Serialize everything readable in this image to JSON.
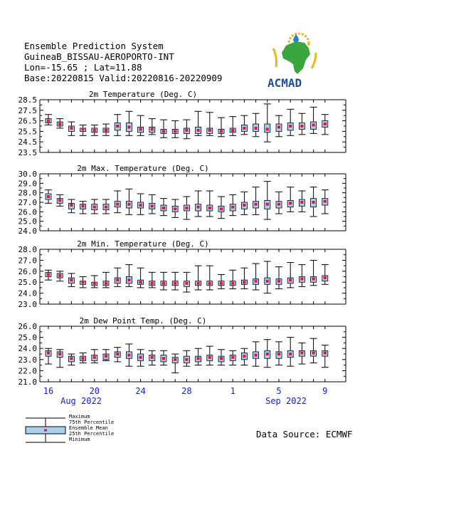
{
  "header": {
    "line1": "Ensemble Prediction System",
    "line2": "GuineaB_BISSAU-AEROPORTO-INT",
    "line3": "Lon=-15.65 ; Lat=11.88",
    "line4": "Base:20220815 Valid:20220816-20220909"
  },
  "logo": {
    "text": "ACMAD"
  },
  "source": "Data Source: ECMWF",
  "legend": {
    "maximum": "Maximum",
    "p75": "75th Percentile",
    "mean": "Ensemble Mean",
    "p25": "25th Percentile",
    "minimum": "Minimum"
  },
  "colors": {
    "box_fill": "#a9cfee",
    "mean_marker": "#e0104c",
    "axis_text": "#1a20c8"
  },
  "x_axis": {
    "tick_labels": [
      "16",
      "20",
      "24",
      "28",
      "1",
      "5",
      "9"
    ],
    "month_labels": [
      "Aug 2022",
      "Sep 2022"
    ]
  },
  "chart_data": [
    {
      "type": "box",
      "title": "2m Temperature (Deg. C)",
      "ylim": [
        23.5,
        28.5
      ],
      "yticks": [
        "28.5",
        "27.5",
        "26.5",
        "25.5",
        "24.5",
        "23.5"
      ],
      "mean": [
        26.5,
        26.2,
        25.8,
        25.7,
        25.6,
        25.6,
        26.0,
        25.9,
        25.7,
        25.7,
        25.5,
        25.5,
        25.6,
        25.6,
        25.6,
        25.5,
        25.6,
        25.8,
        25.8,
        25.7,
        25.9,
        26.0,
        26.0,
        26.1,
        26.2
      ],
      "p25": [
        26.3,
        26.0,
        25.5,
        25.5,
        25.4,
        25.4,
        25.6,
        25.5,
        25.4,
        25.4,
        25.3,
        25.3,
        25.3,
        25.3,
        25.3,
        25.3,
        25.4,
        25.5,
        25.5,
        25.4,
        25.5,
        25.6,
        25.7,
        25.7,
        25.9
      ],
      "p75": [
        26.7,
        26.4,
        26.0,
        25.8,
        25.8,
        25.8,
        26.3,
        26.3,
        25.9,
        25.9,
        25.7,
        25.7,
        25.8,
        25.9,
        25.8,
        25.7,
        25.8,
        26.1,
        26.2,
        26.2,
        26.2,
        26.3,
        26.3,
        26.4,
        26.5
      ],
      "min": [
        26.1,
        25.8,
        25.1,
        25.1,
        25.1,
        25.1,
        25.1,
        25.1,
        25.1,
        25.2,
        24.9,
        24.9,
        24.8,
        25.1,
        25.1,
        25.0,
        25.1,
        25.2,
        25.0,
        24.5,
        25.0,
        25.1,
        25.2,
        25.3,
        25.2
      ],
      "max": [
        27.1,
        26.7,
        26.4,
        26.1,
        26.1,
        26.2,
        27.1,
        27.4,
        27.0,
        26.7,
        26.6,
        26.5,
        26.6,
        27.4,
        27.3,
        26.8,
        26.9,
        27.0,
        27.2,
        28.1,
        27.0,
        27.6,
        27.2,
        27.8,
        27.1
      ]
    },
    {
      "type": "box",
      "title": "2m Max. Temperature (Deg. C)",
      "ylim": [
        24.0,
        30.0
      ],
      "yticks": [
        "30.0",
        "29.0",
        "28.0",
        "27.0",
        "26.0",
        "25.0",
        "24.0"
      ],
      "mean": [
        27.6,
        27.2,
        26.7,
        26.6,
        26.5,
        26.5,
        26.8,
        26.8,
        26.7,
        26.6,
        26.4,
        26.3,
        26.4,
        26.5,
        26.4,
        26.3,
        26.5,
        26.7,
        26.8,
        26.8,
        26.8,
        26.9,
        27.0,
        27.0,
        27.1
      ],
      "p25": [
        27.3,
        26.9,
        26.3,
        26.3,
        26.2,
        26.2,
        26.5,
        26.4,
        26.4,
        26.3,
        26.1,
        26.0,
        26.1,
        26.1,
        26.1,
        26.0,
        26.1,
        26.3,
        26.4,
        26.3,
        26.4,
        26.5,
        26.6,
        26.5,
        26.7
      ],
      "p75": [
        27.9,
        27.4,
        26.9,
        26.8,
        26.8,
        26.8,
        27.1,
        27.1,
        27.0,
        26.9,
        26.7,
        26.6,
        26.7,
        26.8,
        26.7,
        26.6,
        26.8,
        27.0,
        27.1,
        27.2,
        27.1,
        27.2,
        27.3,
        27.4,
        27.4
      ],
      "min": [
        26.9,
        26.6,
        25.9,
        25.8,
        25.8,
        25.8,
        25.9,
        25.7,
        25.7,
        25.8,
        25.6,
        25.4,
        25.2,
        25.5,
        25.5,
        25.3,
        25.6,
        25.7,
        25.7,
        25.2,
        25.8,
        26.0,
        26.0,
        25.5,
        25.8
      ],
      "max": [
        28.3,
        27.8,
        27.3,
        27.1,
        27.3,
        27.3,
        28.2,
        28.4,
        27.9,
        27.8,
        27.4,
        27.3,
        27.6,
        28.2,
        28.2,
        27.6,
        27.8,
        28.1,
        28.6,
        29.2,
        28.1,
        28.6,
        28.2,
        28.6,
        28.3
      ]
    },
    {
      "type": "box",
      "title": "2m Min. Temperature (Deg. C)",
      "ylim": [
        23.0,
        28.0
      ],
      "yticks": [
        "28.0",
        "27.0",
        "26.0",
        "25.0",
        "24.0",
        "23.0"
      ],
      "mean": [
        25.7,
        25.6,
        25.2,
        25.0,
        24.9,
        24.9,
        25.2,
        25.2,
        25.0,
        24.9,
        24.9,
        24.9,
        24.9,
        24.9,
        24.9,
        24.9,
        24.9,
        25.0,
        25.1,
        25.1,
        25.1,
        25.2,
        25.3,
        25.3,
        25.4
      ],
      "p25": [
        25.5,
        25.4,
        24.9,
        24.8,
        24.7,
        24.7,
        24.9,
        24.9,
        24.8,
        24.7,
        24.7,
        24.7,
        24.6,
        24.7,
        24.7,
        24.7,
        24.7,
        24.8,
        24.8,
        24.8,
        24.8,
        24.9,
        25.0,
        25.0,
        25.1
      ],
      "p75": [
        25.9,
        25.8,
        25.4,
        25.1,
        25.0,
        25.1,
        25.4,
        25.5,
        25.2,
        25.1,
        25.1,
        25.1,
        25.1,
        25.1,
        25.1,
        25.1,
        25.1,
        25.2,
        25.3,
        25.4,
        25.3,
        25.4,
        25.5,
        25.5,
        25.6
      ],
      "min": [
        25.2,
        25.1,
        24.6,
        24.5,
        24.5,
        24.5,
        24.6,
        24.6,
        24.5,
        24.5,
        24.3,
        24.3,
        24.1,
        24.3,
        24.3,
        24.4,
        24.4,
        24.4,
        24.3,
        24.0,
        24.4,
        24.5,
        24.6,
        24.7,
        24.8
      ],
      "max": [
        26.1,
        26.0,
        25.8,
        25.5,
        25.6,
        25.9,
        26.3,
        26.6,
        26.3,
        25.9,
        25.9,
        25.9,
        25.9,
        26.5,
        26.5,
        25.7,
        26.1,
        26.3,
        26.7,
        26.9,
        26.4,
        26.8,
        26.6,
        27.0,
        26.6
      ]
    },
    {
      "type": "box",
      "title": "2m Dew Point Temp. (Deg. C)",
      "ylim": [
        21.0,
        26.0
      ],
      "yticks": [
        "26.0",
        "25.0",
        "24.0",
        "23.0",
        "22.0",
        "21.0"
      ],
      "mean": [
        23.6,
        23.5,
        23.1,
        23.1,
        23.2,
        23.3,
        23.5,
        23.4,
        23.2,
        23.2,
        23.1,
        23.0,
        23.0,
        23.1,
        23.2,
        23.1,
        23.2,
        23.3,
        23.4,
        23.5,
        23.5,
        23.5,
        23.6,
        23.6,
        23.6
      ],
      "p25": [
        23.3,
        23.2,
        22.8,
        22.9,
        22.9,
        23.0,
        23.2,
        23.1,
        22.9,
        22.9,
        22.8,
        22.7,
        22.7,
        22.8,
        22.9,
        22.8,
        22.9,
        23.0,
        23.1,
        23.1,
        23.1,
        23.2,
        23.3,
        23.3,
        23.3
      ],
      "p75": [
        23.8,
        23.7,
        23.3,
        23.3,
        23.4,
        23.5,
        23.7,
        23.7,
        23.5,
        23.4,
        23.4,
        23.2,
        23.3,
        23.3,
        23.4,
        23.3,
        23.4,
        23.6,
        23.7,
        23.8,
        23.7,
        23.8,
        23.8,
        23.8,
        23.8
      ],
      "min": [
        22.6,
        22.3,
        22.5,
        22.7,
        22.7,
        22.9,
        22.8,
        22.4,
        22.4,
        22.5,
        22.5,
        21.8,
        22.4,
        22.5,
        22.5,
        22.5,
        22.5,
        22.5,
        22.4,
        22.3,
        22.5,
        22.4,
        22.6,
        22.7,
        22.3
      ],
      "max": [
        24.0,
        23.9,
        23.5,
        23.6,
        23.9,
        23.9,
        24.1,
        24.4,
        23.9,
        23.8,
        23.8,
        23.5,
        23.8,
        24.0,
        24.2,
        23.9,
        23.8,
        24.0,
        24.6,
        24.8,
        24.6,
        25.0,
        24.5,
        24.9,
        24.3
      ]
    }
  ]
}
